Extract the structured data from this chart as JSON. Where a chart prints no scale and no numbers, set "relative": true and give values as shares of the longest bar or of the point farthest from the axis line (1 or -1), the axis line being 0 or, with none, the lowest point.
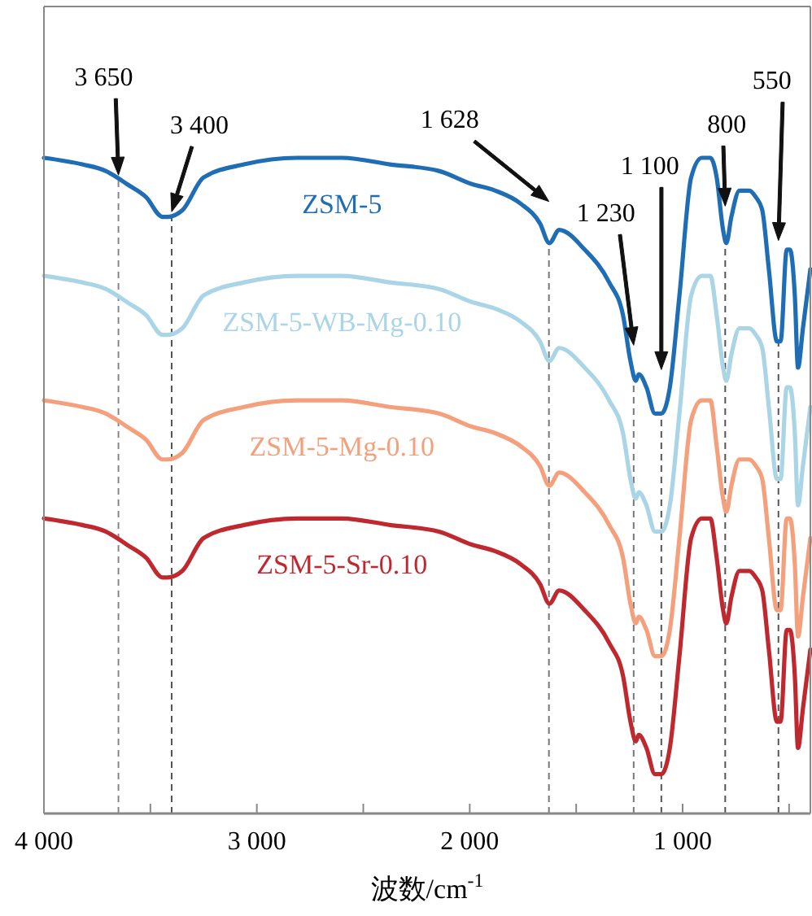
{
  "chart_data": {
    "type": "line",
    "relative": true,
    "xlabel": "波数/cm$^{-1}$",
    "xlim": [
      4000,
      400
    ],
    "xticks": [
      {
        "value": 4000,
        "label": "4 000"
      },
      {
        "value": 3500,
        "label": null
      },
      {
        "value": 3000,
        "label": "3 000"
      },
      {
        "value": 2500,
        "label": null
      },
      {
        "value": 2000,
        "label": "2 000"
      },
      {
        "value": 1500,
        "label": null
      },
      {
        "value": 1000,
        "label": "1 000"
      },
      {
        "value": 500,
        "label": null
      }
    ],
    "tick_labels": "x",
    "grid": false,
    "legend": false,
    "marker": "none",
    "line_style": "solid",
    "x": [
      4000,
      3820,
      3710,
      3656,
      3610,
      3520,
      3443,
      3420,
      3350,
      3250,
      3060,
      2810,
      2600,
      2375,
      2145,
      1990,
      1880,
      1760,
      1670,
      1626,
      1580,
      1460,
      1345,
      1280,
      1245,
      1220,
      1206,
      1170,
      1130,
      1100,
      1060,
      1015,
      960,
      910,
      870,
      840,
      810,
      795,
      771,
      733,
      687,
      656,
      626,
      595,
      557,
      540,
      511,
      496,
      473,
      458,
      435,
      400
    ],
    "series": [
      {
        "name": "ZSM-5",
        "color": "#1f6db5",
        "values": [
          1.0,
          0.99,
          0.98,
          0.97,
          0.96,
          0.94,
          0.91,
          0.91,
          0.92,
          0.97,
          0.99,
          1.0,
          1.0,
          0.99,
          0.98,
          0.96,
          0.95,
          0.93,
          0.9,
          0.87,
          0.89,
          0.86,
          0.81,
          0.76,
          0.69,
          0.66,
          0.67,
          0.65,
          0.61,
          0.61,
          0.65,
          0.79,
          0.97,
          1.0,
          1.0,
          0.97,
          0.89,
          0.87,
          0.91,
          0.95,
          0.95,
          0.94,
          0.92,
          0.83,
          0.72,
          0.72,
          0.86,
          0.86,
          0.79,
          0.68,
          0.74,
          0.83
        ]
      },
      {
        "name": "ZSM-5-WB-Mg-0.10",
        "color": "#a9d5e6",
        "values": [
          0.82,
          0.81,
          0.8,
          0.79,
          0.78,
          0.76,
          0.73,
          0.73,
          0.74,
          0.79,
          0.81,
          0.82,
          0.82,
          0.81,
          0.8,
          0.78,
          0.77,
          0.75,
          0.72,
          0.69,
          0.71,
          0.68,
          0.63,
          0.58,
          0.51,
          0.48,
          0.49,
          0.47,
          0.43,
          0.43,
          0.47,
          0.61,
          0.79,
          0.82,
          0.82,
          0.76,
          0.68,
          0.66,
          0.7,
          0.74,
          0.74,
          0.73,
          0.71,
          0.62,
          0.51,
          0.51,
          0.65,
          0.65,
          0.58,
          0.47,
          0.53,
          0.62
        ]
      },
      {
        "name": "ZSM-5-Mg-0.10",
        "color": "#f4a07c",
        "values": [
          0.63,
          0.62,
          0.61,
          0.6,
          0.59,
          0.57,
          0.54,
          0.54,
          0.55,
          0.6,
          0.62,
          0.63,
          0.63,
          0.62,
          0.61,
          0.59,
          0.58,
          0.56,
          0.53,
          0.5,
          0.52,
          0.49,
          0.44,
          0.39,
          0.32,
          0.29,
          0.3,
          0.28,
          0.24,
          0.24,
          0.28,
          0.42,
          0.6,
          0.63,
          0.63,
          0.56,
          0.48,
          0.46,
          0.5,
          0.54,
          0.54,
          0.53,
          0.51,
          0.42,
          0.31,
          0.31,
          0.45,
          0.45,
          0.38,
          0.27,
          0.33,
          0.42
        ]
      },
      {
        "name": "ZSM-5-Sr-0.10",
        "color": "#c0282f",
        "values": [
          0.45,
          0.44,
          0.43,
          0.42,
          0.41,
          0.39,
          0.36,
          0.36,
          0.37,
          0.42,
          0.44,
          0.45,
          0.45,
          0.44,
          0.43,
          0.41,
          0.4,
          0.38,
          0.35,
          0.32,
          0.34,
          0.31,
          0.26,
          0.21,
          0.14,
          0.11,
          0.12,
          0.1,
          0.06,
          0.06,
          0.1,
          0.24,
          0.42,
          0.45,
          0.45,
          0.39,
          0.31,
          0.29,
          0.33,
          0.37,
          0.37,
          0.36,
          0.34,
          0.25,
          0.14,
          0.14,
          0.28,
          0.28,
          0.21,
          0.1,
          0.16,
          0.25
        ]
      }
    ],
    "ref_lines": [
      {
        "axis": "x",
        "value": 3650,
        "color": "#888888",
        "line_style": "dashed"
      },
      {
        "axis": "x",
        "value": 3400,
        "color": "#555555",
        "line_style": "dashed"
      },
      {
        "axis": "x",
        "value": 1628,
        "color": "#777777",
        "line_style": "dashed"
      },
      {
        "axis": "x",
        "value": 1230,
        "color": "#777777",
        "line_style": "dashed"
      },
      {
        "axis": "x",
        "value": 1100,
        "color": "#555555",
        "line_style": "dashed"
      },
      {
        "axis": "x",
        "value": 800,
        "color": "#555555",
        "line_style": "dashed"
      },
      {
        "axis": "x",
        "value": 550,
        "color": "#555555",
        "line_style": "dashed"
      }
    ],
    "annotations": [
      "3 650",
      "3 400",
      "1 628",
      "1 230",
      "1 100",
      "800",
      "550"
    ]
  }
}
